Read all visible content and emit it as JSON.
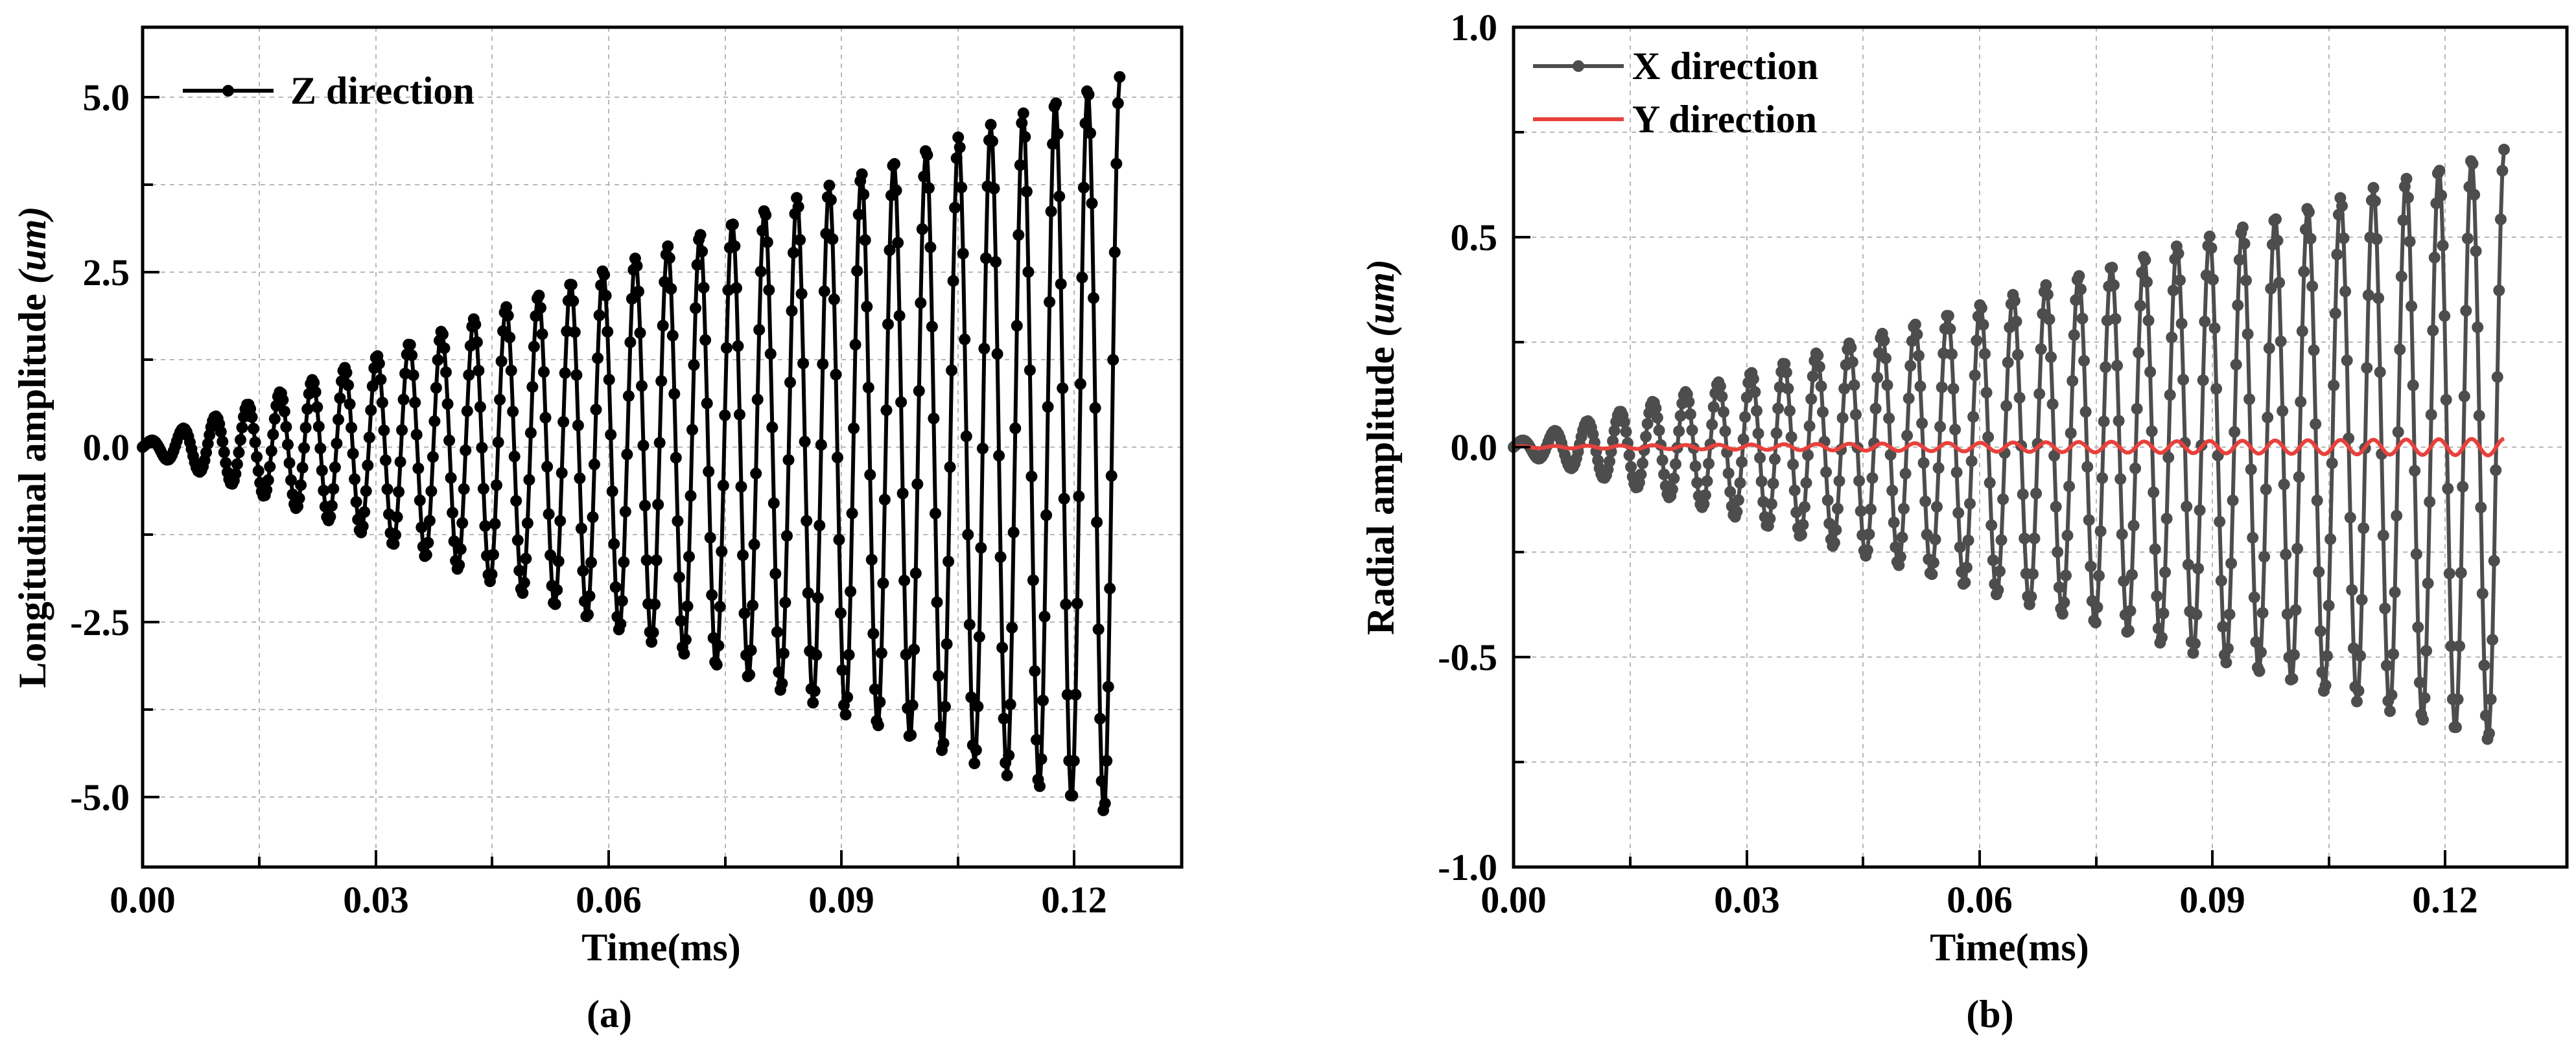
{
  "chart_data": [
    {
      "type": "line",
      "panel_label": "(a)",
      "xlabel": "Time(ms)",
      "ylabel": "Longitudinal amplitude",
      "ylabel_unit": "(um)",
      "xlim": [
        0,
        0.134
      ],
      "ylim": [
        -6.0,
        6.0
      ],
      "xticks": [
        0.0,
        0.03,
        0.06,
        0.09,
        0.12
      ],
      "xtick_labels": [
        "0.00",
        "0.03",
        "0.06",
        "0.09",
        "0.12"
      ],
      "yticks": [
        -5.0,
        -2.5,
        0.0,
        2.5,
        5.0
      ],
      "ytick_labels": [
        "-5.0",
        "-2.5",
        "0.0",
        "2.5",
        "5.0"
      ],
      "grid": true,
      "legend_position": "top-left",
      "series": [
        {
          "name": "Z direction",
          "color": "#000000",
          "markers": true,
          "signal": {
            "t_start": 0.0,
            "t_end": 0.126,
            "n_points": 600,
            "frequency_khz": 240,
            "amp_start": 0.05,
            "amp_end": 5.3,
            "envelope": "linear",
            "phase": 0
          }
        }
      ]
    },
    {
      "type": "line",
      "panel_label": "(b)",
      "xlabel": "Time(ms)",
      "ylabel": "Radial amplitude",
      "ylabel_unit": "(um)",
      "xlim": [
        0,
        0.134
      ],
      "ylim": [
        -1.0,
        1.0
      ],
      "xticks": [
        0.0,
        0.03,
        0.06,
        0.09,
        0.12
      ],
      "xtick_labels": [
        "0.00",
        "0.03",
        "0.06",
        "0.09",
        "0.12"
      ],
      "yticks": [
        -1.0,
        -0.5,
        0.0,
        0.5,
        1.0
      ],
      "ytick_labels": [
        "-1.0",
        "-0.5",
        "0.0",
        "0.5",
        "1.0"
      ],
      "grid": true,
      "legend_position": "top-left",
      "series": [
        {
          "name": "X direction",
          "color": "#4d4d4d",
          "markers": true,
          "signal": {
            "t_start": 0.0,
            "t_end": 0.126,
            "n_points": 600,
            "frequency_khz": 240,
            "amp_start": 0.01,
            "amp_end": 0.71,
            "envelope": "linear",
            "phase": 0
          }
        },
        {
          "name": "Y direction",
          "color": "#e8413c",
          "markers": false,
          "signal": {
            "t_start": 0.0,
            "t_end": 0.126,
            "n_points": 600,
            "frequency_khz": 240,
            "amp_start": 0.002,
            "amp_end": 0.02,
            "envelope": "linear",
            "phase": 0
          }
        }
      ]
    }
  ]
}
